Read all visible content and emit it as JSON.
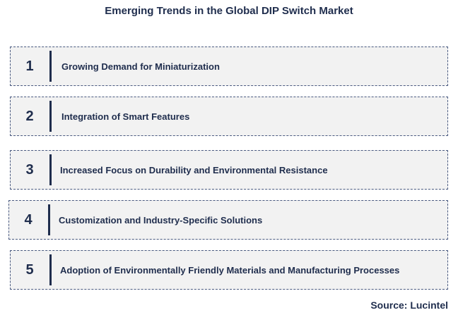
{
  "title": "Emerging Trends in the Global DIP Switch Market",
  "trends": [
    {
      "number": "1",
      "label": "Growing Demand for Miniaturization"
    },
    {
      "number": "2",
      "label": "Integration of Smart Features"
    },
    {
      "number": "3",
      "label": "Increased Focus on Durability and Environmental Resistance"
    },
    {
      "number": "4",
      "label": "Customization and Industry-Specific Solutions"
    },
    {
      "number": "5",
      "label": "Adoption of Environmentally Friendly Materials and Manufacturing Processes"
    }
  ],
  "source": "Source: Lucintel",
  "colors": {
    "text": "#1f2d4d",
    "card_fill": "#f2f2f2",
    "card_border": "#4a5a80"
  }
}
